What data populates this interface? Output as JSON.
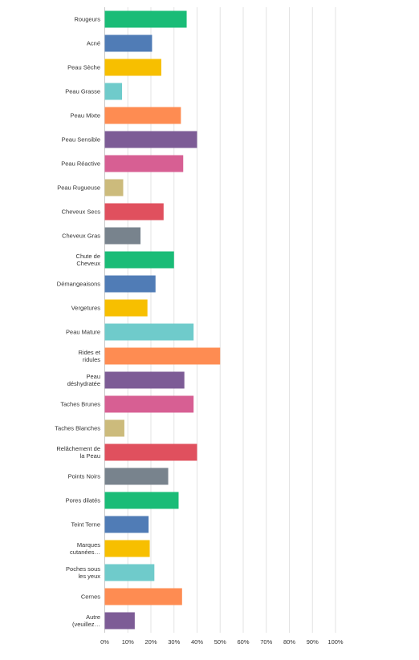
{
  "chart_data": {
    "type": "bar",
    "orientation": "horizontal",
    "categories": [
      "Rougeurs",
      "Acné",
      "Peau Sèche",
      "Peau Grasse",
      "Peau Mixte",
      "Peau Sensible",
      "Peau Réactive",
      "Peau Rugueuse",
      "Cheveux Secs",
      "Cheveux Gras",
      "Chute de Cheveux",
      "Démangeaisons",
      "Vergetures",
      "Peau Mature",
      "Rides et ridules",
      "Peau déshydratée",
      "Taches Brunes",
      "Taches Blanches",
      "Relâchement de la Peau",
      "Points Noirs",
      "Pores dilatés",
      "Teint Terne",
      "Marques cutanées…",
      "Poches sous les yeux",
      "Cernes",
      "Autre (veuillez…"
    ],
    "category_lines": [
      [
        "Rougeurs"
      ],
      [
        "Acné"
      ],
      [
        "Peau Sèche"
      ],
      [
        "Peau Grasse"
      ],
      [
        "Peau Mixte"
      ],
      [
        "Peau Sensible"
      ],
      [
        "Peau Réactive"
      ],
      [
        "Peau Rugueuse"
      ],
      [
        "Cheveux Secs"
      ],
      [
        "Cheveux Gras"
      ],
      [
        "Chute de",
        "Cheveux"
      ],
      [
        "Démangeaisons"
      ],
      [
        "Vergetures"
      ],
      [
        "Peau Mature"
      ],
      [
        "Rides et",
        "ridules"
      ],
      [
        "Peau",
        "déshydratée"
      ],
      [
        "Taches Brunes"
      ],
      [
        "Taches Blanches"
      ],
      [
        "Relâchement de",
        "la Peau"
      ],
      [
        "Points Noirs"
      ],
      [
        "Pores dilatés"
      ],
      [
        "Teint Terne"
      ],
      [
        "Marques",
        "cutanées…"
      ],
      [
        "Poches sous",
        "les yeux"
      ],
      [
        "Cernes"
      ],
      [
        "Autre",
        "(veuillez…"
      ]
    ],
    "values": [
      35.5,
      20.5,
      24.5,
      7.5,
      33,
      40,
      34,
      8,
      25.5,
      15.5,
      30,
      22,
      18.5,
      38.5,
      50,
      34.5,
      38.5,
      8.5,
      40,
      27.5,
      32,
      19,
      19.5,
      21.5,
      33.5,
      13
    ],
    "xlim": [
      0,
      100
    ],
    "x_ticks": [
      "0%",
      "10%",
      "20%",
      "30%",
      "40%",
      "50%",
      "60%",
      "70%",
      "80%",
      "90%",
      "100%"
    ],
    "x_tick_values": [
      0,
      10,
      20,
      30,
      40,
      50,
      60,
      70,
      80,
      90,
      100
    ],
    "grid": true,
    "palette": [
      "#1abc77",
      "#507cb6",
      "#f7bf00",
      "#6fcbcb",
      "#fe8c52",
      "#7d5c96",
      "#d75f93",
      "#ccbb7c",
      "#e0505e",
      "#78838d"
    ],
    "gridline_color": "#e3e3e3",
    "axis_color": "#c8c8c8"
  }
}
